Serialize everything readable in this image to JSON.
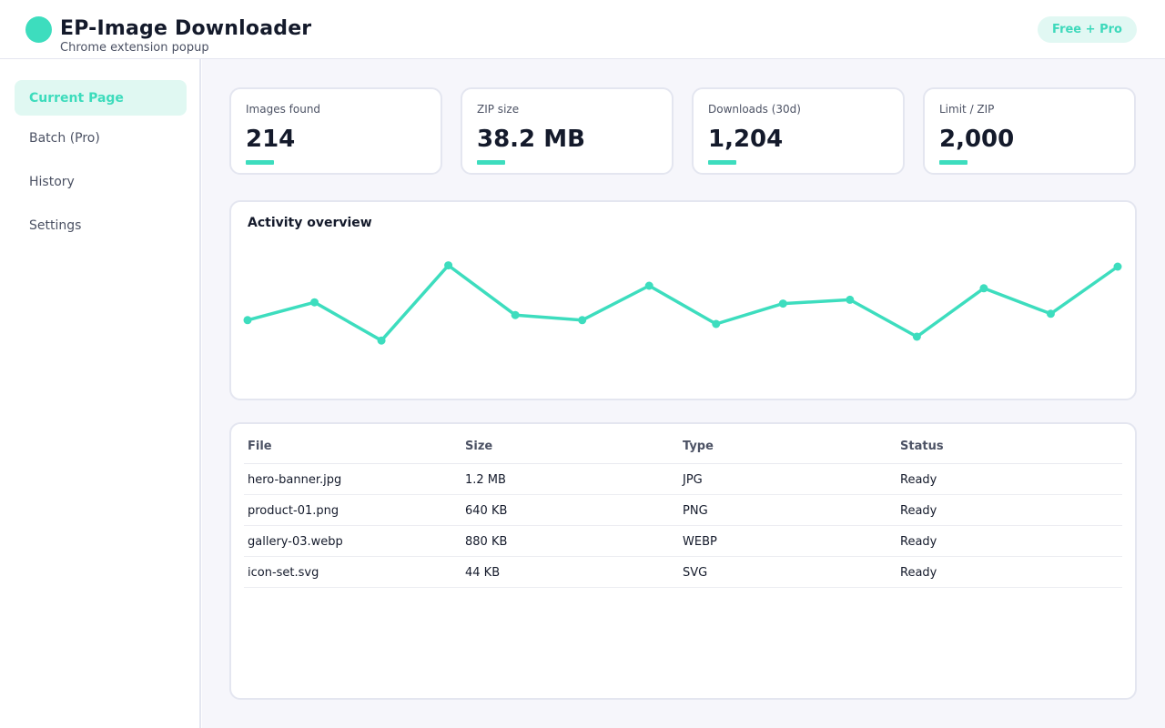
{
  "header": {
    "title": "EP-Image Downloader",
    "subtitle": "Chrome extension popup",
    "badge": "Free + Pro",
    "logo_icon": "teal-circle-logo",
    "accent_color": "#3dddbe"
  },
  "sidebar": {
    "items": [
      {
        "label": "Current Page",
        "active": true
      },
      {
        "label": "Batch (Pro)",
        "active": false
      },
      {
        "label": "History",
        "active": false
      },
      {
        "label": "Settings",
        "active": false
      }
    ]
  },
  "stats": [
    {
      "label": "Images found",
      "value": "214"
    },
    {
      "label": "ZIP size",
      "value": "38.2 MB"
    },
    {
      "label": "Downloads (30d)",
      "value": "1,204"
    },
    {
      "label": "Limit / ZIP",
      "value": "2,000"
    }
  ],
  "activity": {
    "title": "Activity overview",
    "series": [
      43,
      57,
      27,
      86,
      47,
      43,
      70,
      40,
      56,
      59,
      30,
      68,
      48,
      85
    ],
    "y_range": [
      0,
      100
    ],
    "line_color": "#3dddbe"
  },
  "table": {
    "columns": [
      "File",
      "Size",
      "Type",
      "Status"
    ],
    "rows": [
      [
        "hero-banner.jpg",
        "1.2 MB",
        "JPG",
        "Ready"
      ],
      [
        "product-01.png",
        "640 KB",
        "PNG",
        "Ready"
      ],
      [
        "gallery-03.webp",
        "880 KB",
        "WEBP",
        "Ready"
      ],
      [
        "icon-set.svg",
        "44 KB",
        "SVG",
        "Ready"
      ]
    ]
  }
}
